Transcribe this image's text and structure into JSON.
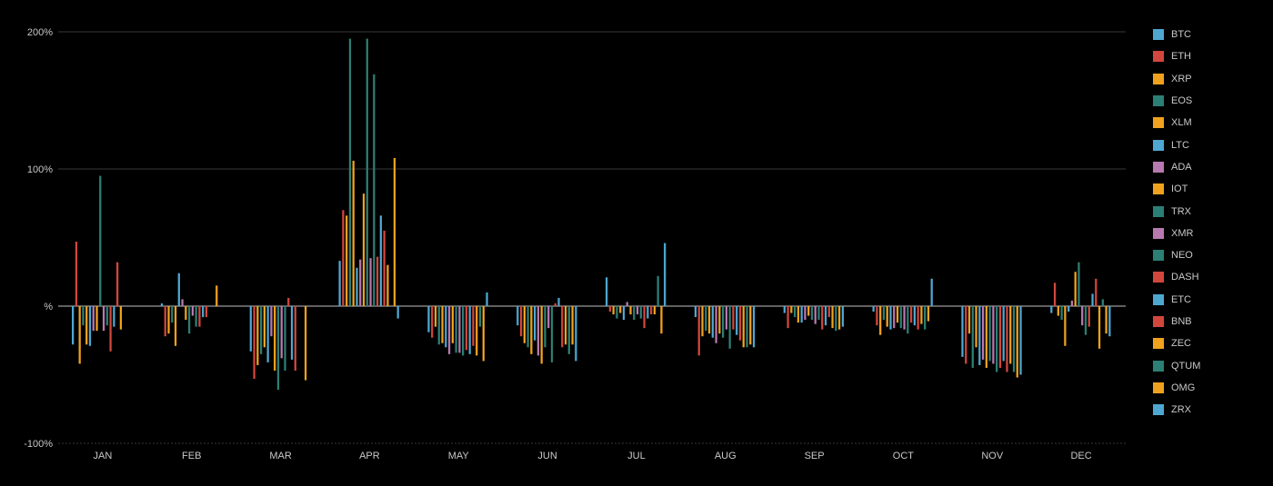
{
  "chart_data": {
    "type": "bar",
    "title": "",
    "xlabel": "",
    "ylabel": "",
    "ylim": [
      -100,
      200
    ],
    "y_ticks": [
      {
        "value": 200,
        "label": "200%"
      },
      {
        "value": 100,
        "label": "100%"
      },
      {
        "value": 0,
        "label": "%"
      },
      {
        "value": -100,
        "label": "-100%"
      }
    ],
    "grid": true,
    "legend_position": "right",
    "categories": [
      "JAN",
      "FEB",
      "MAR",
      "APR",
      "MAY",
      "JUN",
      "JUL",
      "AUG",
      "SEP",
      "OCT",
      "NOV",
      "DEC"
    ],
    "series": [
      {
        "name": "BTC",
        "color": "#4ea7d1",
        "values": [
          -28,
          2,
          -33,
          33,
          -19,
          -14,
          21,
          -8,
          -5,
          -4,
          -37,
          -5
        ]
      },
      {
        "name": "ETH",
        "color": "#d2473d",
        "values": [
          47,
          -22,
          -53,
          70,
          -23,
          -22,
          -4,
          -36,
          -16,
          -14,
          -42,
          17
        ]
      },
      {
        "name": "XRP",
        "color": "#f0a21e",
        "values": [
          -42,
          -20,
          -43,
          66,
          -15,
          -27,
          -6,
          -22,
          -5,
          -21,
          -20,
          -7
        ]
      },
      {
        "name": "EOS",
        "color": "#2c7f74",
        "values": [
          -14,
          -12,
          -35,
          195,
          -28,
          -30,
          -9,
          -18,
          -8,
          -10,
          -45,
          -10
        ]
      },
      {
        "name": "XLM",
        "color": "#f0a21e",
        "values": [
          -28,
          -29,
          -30,
          106,
          -27,
          -35,
          -5,
          -20,
          -12,
          -15,
          -30,
          -29
        ]
      },
      {
        "name": "LTC",
        "color": "#4ea7d1",
        "values": [
          -29,
          24,
          -41,
          28,
          -30,
          -25,
          -10,
          -23,
          -12,
          -17,
          -43,
          -4
        ]
      },
      {
        "name": "ADA",
        "color": "#b879b0",
        "values": [
          -18,
          5,
          -22,
          34,
          -35,
          -36,
          3,
          -27,
          -10,
          -16,
          -39,
          4
        ]
      },
      {
        "name": "IOT",
        "color": "#f0a21e",
        "values": [
          -18,
          -10,
          -47,
          82,
          -27,
          -42,
          -6,
          -20,
          -7,
          -12,
          -45,
          25
        ]
      },
      {
        "name": "TRX",
        "color": "#2c7f74",
        "values": [
          95,
          -20,
          -61,
          195,
          -34,
          -30,
          -10,
          -23,
          -10,
          -16,
          -40,
          32
        ]
      },
      {
        "name": "XMR",
        "color": "#b879b0",
        "values": [
          -18,
          -7,
          -38,
          35,
          -34,
          -16,
          -6,
          -17,
          -13,
          -17,
          -42,
          -14
        ]
      },
      {
        "name": "NEO",
        "color": "#2c7f74",
        "values": [
          -14,
          -15,
          -47,
          169,
          -36,
          -41,
          -9,
          -31,
          -10,
          -20,
          -48,
          -21
        ]
      },
      {
        "name": "DASH",
        "color": "#d2473d",
        "values": [
          -33,
          -15,
          6,
          36,
          -32,
          2,
          -16,
          -17,
          -17,
          -12,
          -45,
          -15
        ]
      },
      {
        "name": "ETC",
        "color": "#4ea7d1",
        "values": [
          -15,
          -8,
          -39,
          66,
          -35,
          6,
          -9,
          -21,
          -14,
          -14,
          -40,
          9
        ]
      },
      {
        "name": "BNB",
        "color": "#d2473d",
        "values": [
          32,
          -8,
          -47,
          55,
          -29,
          -30,
          -6,
          -25,
          -8,
          -17,
          -48,
          20
        ]
      },
      {
        "name": "ZEC",
        "color": "#f0a21e",
        "values": [
          -17,
          0,
          0,
          30,
          -36,
          -28,
          -6,
          -30,
          -16,
          -13,
          -42,
          -31
        ]
      },
      {
        "name": "QTUM",
        "color": "#2c7f74",
        "values": [
          0,
          0,
          0,
          0,
          -15,
          -35,
          22,
          -30,
          -18,
          -17,
          -48,
          5
        ]
      },
      {
        "name": "OMG",
        "color": "#f0a21e",
        "values": [
          0,
          15,
          -54,
          108,
          -40,
          -28,
          -20,
          -28,
          -17,
          -11,
          -52,
          -20
        ]
      },
      {
        "name": "ZRX",
        "color": "#4ea7d1",
        "values": [
          0,
          0,
          0,
          -9,
          10,
          -40,
          46,
          -30,
          -15,
          20,
          -50,
          -22
        ]
      }
    ]
  }
}
